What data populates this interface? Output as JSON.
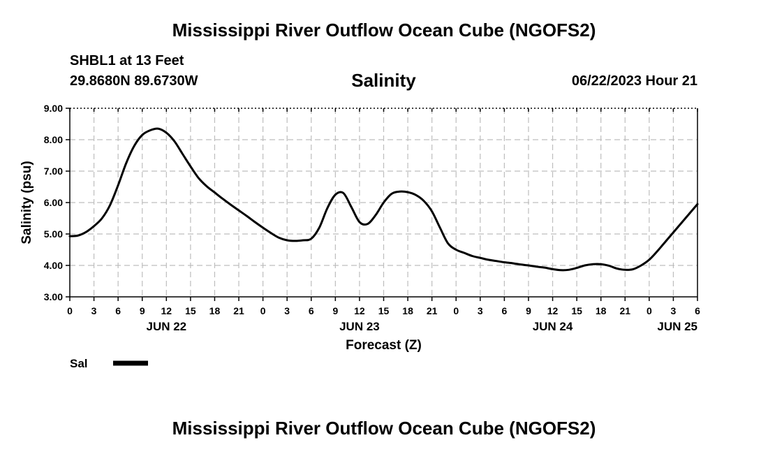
{
  "header": {
    "title_top": "Mississippi River Outflow Ocean Cube (NGOFS2)",
    "station": "SHBL1 at 13 Feet",
    "coords": "29.8680N  89.6730W",
    "date": "06/22/2023 Hour 21",
    "title_bottom": "Mississippi River Outflow Ocean Cube (NGOFS2)"
  },
  "colors": {
    "line": "#000000",
    "grid": "#bdbdbd",
    "background": "#ffffff"
  },
  "chart_data": {
    "type": "line",
    "title": "Salinity",
    "xlabel": "Forecast (Z)",
    "ylabel": "Salinity (psu)",
    "ylim": [
      3.0,
      9.0
    ],
    "xlim": [
      0,
      78
    ],
    "x_unit": "hours since JUN 22 00Z",
    "yticks": [
      "3.00",
      "4.00",
      "5.00",
      "6.00",
      "7.00",
      "8.00",
      "9.00"
    ],
    "ytick_values": [
      3,
      4,
      5,
      6,
      7,
      8,
      9
    ],
    "xtick_hours": [
      0,
      3,
      6,
      9,
      12,
      15,
      18,
      21,
      24,
      27,
      30,
      33,
      36,
      39,
      42,
      45,
      48,
      51,
      54,
      57,
      60,
      63,
      66,
      69,
      72,
      75,
      78
    ],
    "xtick_labels": [
      "0",
      "3",
      "6",
      "9",
      "12",
      "15",
      "18",
      "21",
      "0",
      "3",
      "6",
      "9",
      "12",
      "15",
      "18",
      "21",
      "0",
      "3",
      "6",
      "9",
      "12",
      "15",
      "18",
      "21",
      "0",
      "3",
      "6"
    ],
    "date_labels": [
      {
        "text": "JUN 22",
        "hour": 12
      },
      {
        "text": "JUN 23",
        "hour": 36
      },
      {
        "text": "JUN 24",
        "hour": 60
      },
      {
        "text": "JUN 25",
        "hour": 78
      }
    ],
    "grid": true,
    "legend": {
      "label": "Sal",
      "position": "bottom-left"
    },
    "series": [
      {
        "name": "Sal",
        "x": [
          0,
          1,
          2,
          3,
          4,
          5,
          6,
          7,
          8,
          9,
          10,
          11,
          12,
          13,
          14,
          15,
          16,
          17,
          18,
          19,
          20,
          21,
          22,
          23,
          24,
          25,
          26,
          27,
          28,
          29,
          30,
          31,
          32,
          33,
          34,
          35,
          36,
          37,
          38,
          39,
          40,
          41,
          42,
          43,
          44,
          45,
          46,
          47,
          48,
          49,
          50,
          51,
          52,
          53,
          54,
          55,
          56,
          57,
          58,
          59,
          60,
          61,
          62,
          63,
          64,
          65,
          66,
          67,
          68,
          69,
          70,
          71,
          72,
          73,
          74,
          75,
          76,
          77,
          78
        ],
        "values": [
          4.93,
          4.95,
          5.06,
          5.25,
          5.5,
          5.92,
          6.55,
          7.25,
          7.8,
          8.15,
          8.3,
          8.35,
          8.22,
          7.95,
          7.55,
          7.15,
          6.78,
          6.52,
          6.32,
          6.12,
          5.93,
          5.75,
          5.57,
          5.38,
          5.2,
          5.03,
          4.88,
          4.8,
          4.78,
          4.8,
          4.85,
          5.2,
          5.82,
          6.25,
          6.3,
          5.85,
          5.38,
          5.32,
          5.6,
          6.0,
          6.28,
          6.35,
          6.33,
          6.24,
          6.05,
          5.72,
          5.2,
          4.7,
          4.5,
          4.4,
          4.3,
          4.24,
          4.18,
          4.14,
          4.1,
          4.07,
          4.03,
          4.0,
          3.96,
          3.93,
          3.88,
          3.85,
          3.86,
          3.92,
          4.0,
          4.04,
          4.04,
          3.99,
          3.9,
          3.86,
          3.88,
          4.0,
          4.18,
          4.45,
          4.75,
          5.05,
          5.35,
          5.65,
          5.95
        ]
      }
    ]
  }
}
